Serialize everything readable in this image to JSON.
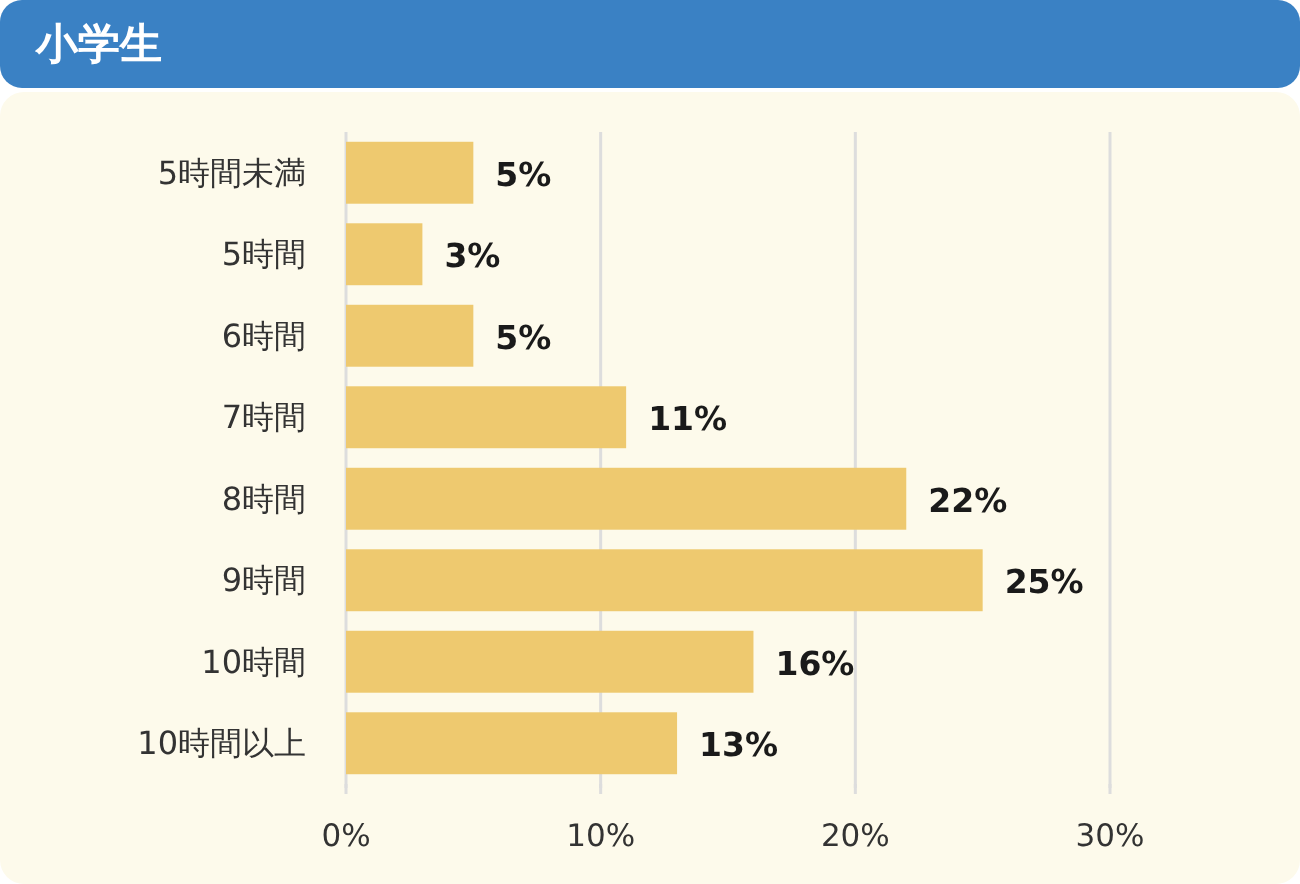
{
  "chart_data": {
    "type": "bar",
    "orientation": "horizontal",
    "title": "小学生",
    "categories": [
      "5時間未満",
      "5時間",
      "6時間",
      "7時間",
      "8時間",
      "9時間",
      "10時間",
      "10時間以上"
    ],
    "values": [
      5,
      3,
      5,
      11,
      22,
      25,
      16,
      13
    ],
    "value_labels": [
      "5%",
      "3%",
      "5%",
      "11%",
      "22%",
      "25%",
      "16%",
      "13%"
    ],
    "color": "#eec96f",
    "xlim": [
      0,
      30
    ],
    "xticks": [
      {
        "value": 0,
        "label": "0%"
      },
      {
        "value": 10,
        "label": "10%"
      },
      {
        "value": 20,
        "label": "20%"
      },
      {
        "value": 30,
        "label": "30%"
      }
    ],
    "grid": "x"
  }
}
